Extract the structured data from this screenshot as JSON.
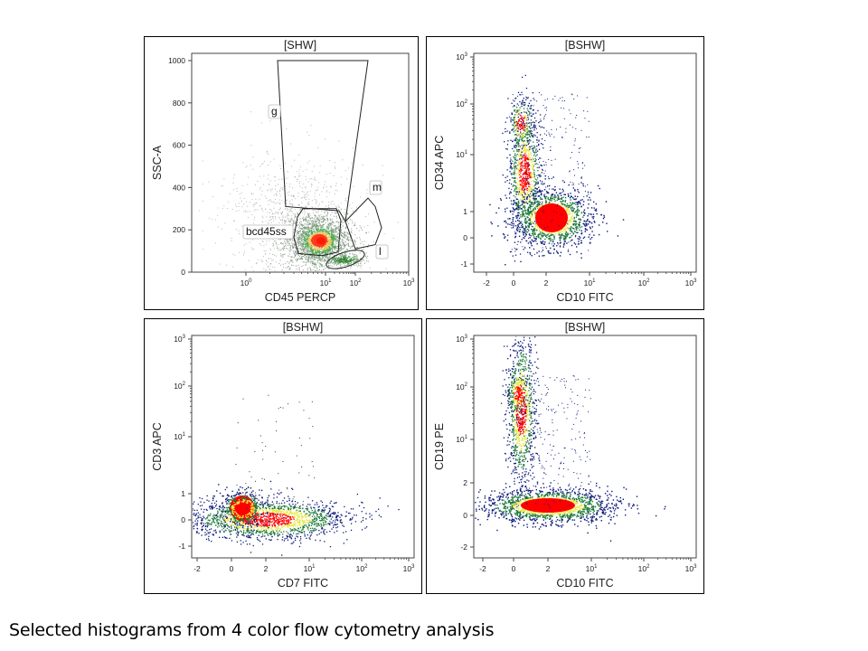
{
  "caption": "Selected histograms from 4 color flow cytometry analysis",
  "chart_data": [
    {
      "type": "scatter",
      "id": "p1",
      "title": "[SHW]",
      "xlabel": "CD45 PERCP",
      "ylabel": "SSC-A",
      "x_scale": "log",
      "x_ticks": [
        {
          "base": "10",
          "exp": "0"
        },
        {
          "base": "10",
          "exp": "1"
        },
        {
          "base": "10",
          "exp": "2"
        },
        {
          "base": "10",
          "exp": "3"
        }
      ],
      "y_scale": "linear",
      "y_ticks": [
        "0",
        "200",
        "400",
        "600",
        "800",
        "1000"
      ],
      "gates": [
        {
          "name": "g"
        },
        {
          "name": "bcd45ss"
        },
        {
          "name": "m"
        },
        {
          "name": "l"
        }
      ],
      "populations_desc": "main density centred near CD45 ~10^1.3, SSC ~150 (red core); lymphocyte cluster near CD45 ~10^1.9, SSC ~60; sparse grey events up to SSC 1000"
    },
    {
      "type": "scatter",
      "id": "p2",
      "title": "[BSHW]",
      "xlabel": "CD10 FITC",
      "ylabel": "CD34 APC",
      "x_ticks": [
        "-2",
        "0",
        "2",
        {
          "base": "10",
          "exp": "1"
        },
        {
          "base": "10",
          "exp": "2"
        },
        {
          "base": "10",
          "exp": "3"
        }
      ],
      "y_ticks": [
        "-1",
        "0",
        "1",
        {
          "base": "10",
          "exp": "1"
        },
        {
          "base": "10",
          "exp": "2"
        },
        {
          "base": "10",
          "exp": "3"
        }
      ],
      "colors": {
        "low": "#1a237e",
        "mid": "#2e7d32",
        "high": "#ffeb3b",
        "peak": "#ff0000"
      }
    },
    {
      "type": "scatter",
      "id": "p3",
      "title": "[BSHW]",
      "xlabel": "CD7 FITC",
      "ylabel": "CD3 APC",
      "x_ticks": [
        "-2",
        "0",
        "2",
        {
          "base": "10",
          "exp": "1"
        },
        {
          "base": "10",
          "exp": "2"
        },
        {
          "base": "10",
          "exp": "3"
        }
      ],
      "y_ticks": [
        "-1",
        "0",
        "1",
        {
          "base": "10",
          "exp": "1"
        },
        {
          "base": "10",
          "exp": "2"
        },
        {
          "base": "10",
          "exp": "3"
        }
      ]
    },
    {
      "type": "scatter",
      "id": "p4",
      "title": "[BSHW]",
      "xlabel": "CD10 FITC",
      "ylabel": "CD19 PE",
      "x_ticks": [
        "-2",
        "0",
        "2",
        {
          "base": "10",
          "exp": "1"
        },
        {
          "base": "10",
          "exp": "2"
        },
        {
          "base": "10",
          "exp": "3"
        }
      ],
      "y_ticks": [
        "-2",
        "0",
        "2",
        {
          "base": "10",
          "exp": "1"
        },
        {
          "base": "10",
          "exp": "2"
        },
        {
          "base": "10",
          "exp": "3"
        }
      ]
    }
  ]
}
